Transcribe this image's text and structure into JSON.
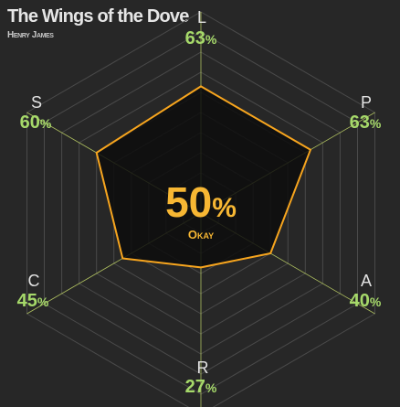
{
  "header": {
    "title": "The Wings of the Dove",
    "author": "Henry James"
  },
  "colors": {
    "background": "#272727",
    "grid": "#4a4a4a",
    "spokes": "#c6d96a",
    "fill": "#0d0d0d",
    "outline": "#f7a51e",
    "value_text": "#a6d96a",
    "score_text": "#f7b733"
  },
  "chart_data": {
    "type": "radar",
    "range": [
      0,
      100
    ],
    "grid_rings": 10,
    "axes": [
      {
        "label": "L",
        "value": 63
      },
      {
        "label": "P",
        "value": 63
      },
      {
        "label": "A",
        "value": 40
      },
      {
        "label": "R",
        "value": 27
      },
      {
        "label": "C",
        "value": 45
      },
      {
        "label": "S",
        "value": 60
      }
    ],
    "value_suffix": "%",
    "center": {
      "score": 50,
      "suffix": "%",
      "rating": "Okay"
    }
  }
}
